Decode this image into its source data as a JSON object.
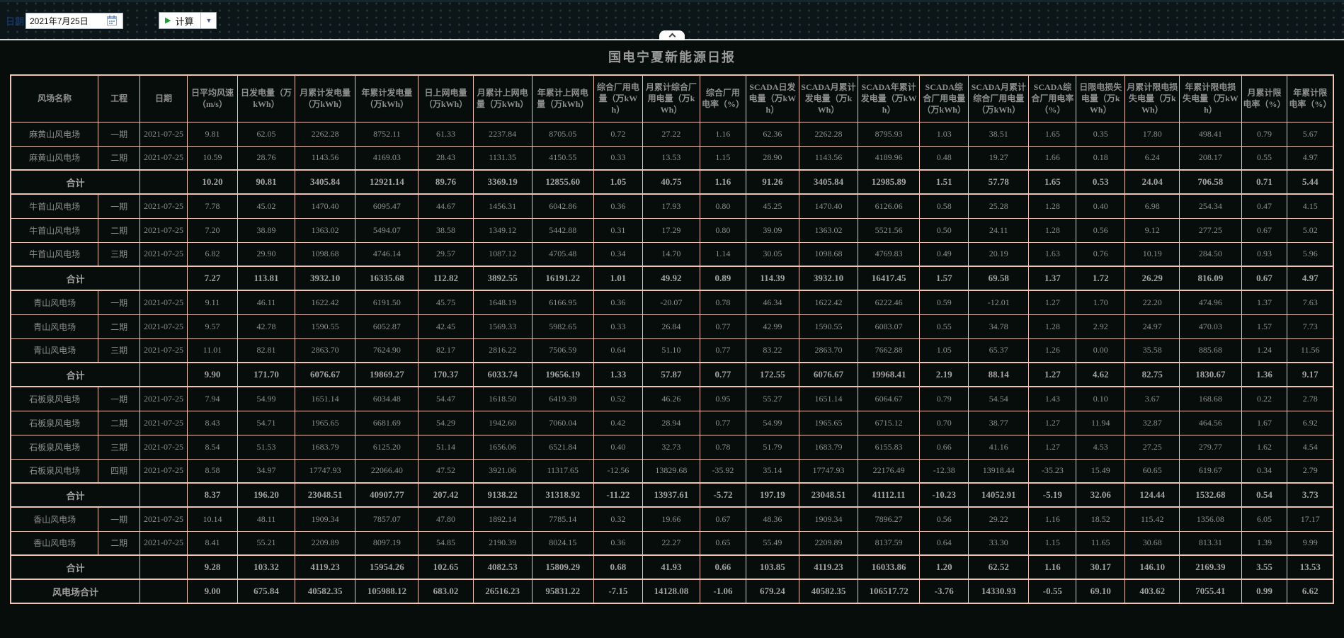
{
  "toolbar": {
    "date_label": "日期",
    "date_value": "2021年7月25日",
    "calc_button_label": "计算"
  },
  "header": {
    "title": "国电宁夏新能源日报"
  },
  "colors": {
    "table_border": "#f0c4b2",
    "cell_text": "#8f8f8f",
    "play_icon_green": "#18a02c",
    "dropdown_arrow_blue": "#3f5f9e",
    "page_background": "#060d0a"
  },
  "table": {
    "columns": [
      "风场名称",
      "工程",
      "日期",
      "日平均风速（m/s）",
      "日发电量（万kWh）",
      "月累计发电量（万kWh）",
      "年累计发电量（万kWh）",
      "日上网电量（万kWh）",
      "月累计上网电量（万kWh）",
      "年累计上网电量（万kWh）",
      "综合厂用电量（万kWh）",
      "月累计综合厂用电量（万kWh）",
      "综合厂用电率（%）",
      "SCADA日发电量（万kWh）",
      "SCADA月累计发电量（万kWh）",
      "SCADA年累计发电量（万kWh）",
      "SCADA综合厂用电量（万kWh）",
      "SCADA月累计综合厂用电量（万kWh）",
      "SCADA综合厂用电率（%）",
      "日限电损失电量（万kWh）",
      "月累计限电损失电量（万kWh）",
      "年累计限电损失电量（万kWh）",
      "月累计限电率（%）",
      "年累计限电率（%）"
    ],
    "rows": [
      {
        "type": "data",
        "name": "麻黄山风电场",
        "phase": "一期",
        "date": "2021-07-25",
        "values": [
          "9.81",
          "62.05",
          "2262.28",
          "8752.11",
          "61.33",
          "2237.84",
          "8705.05",
          "0.72",
          "27.22",
          "1.16",
          "62.36",
          "2262.28",
          "8795.93",
          "1.03",
          "38.51",
          "1.65",
          "0.35",
          "17.80",
          "498.41",
          "0.79",
          "5.67"
        ]
      },
      {
        "type": "data",
        "name": "麻黄山风电场",
        "phase": "二期",
        "date": "2021-07-25",
        "values": [
          "10.59",
          "28.76",
          "1143.56",
          "4169.03",
          "28.43",
          "1131.35",
          "4150.55",
          "0.33",
          "13.53",
          "1.15",
          "28.90",
          "1143.56",
          "4189.96",
          "0.48",
          "19.27",
          "1.66",
          "0.18",
          "6.24",
          "208.17",
          "0.55",
          "4.97"
        ]
      },
      {
        "type": "subtotal",
        "name": "合计",
        "date": "",
        "values": [
          "10.20",
          "90.81",
          "3405.84",
          "12921.14",
          "89.76",
          "3369.19",
          "12855.60",
          "1.05",
          "40.75",
          "1.16",
          "91.26",
          "3405.84",
          "12985.89",
          "1.51",
          "57.78",
          "1.65",
          "0.53",
          "24.04",
          "706.58",
          "0.71",
          "5.44"
        ]
      },
      {
        "type": "data",
        "name": "牛首山风电场",
        "phase": "一期",
        "date": "2021-07-25",
        "values": [
          "7.78",
          "45.02",
          "1470.40",
          "6095.47",
          "44.67",
          "1456.31",
          "6042.86",
          "0.36",
          "17.93",
          "0.80",
          "45.25",
          "1470.40",
          "6126.06",
          "0.58",
          "25.28",
          "1.28",
          "0.40",
          "6.98",
          "254.34",
          "0.47",
          "4.15"
        ]
      },
      {
        "type": "data",
        "name": "牛首山风电场",
        "phase": "二期",
        "date": "2021-07-25",
        "values": [
          "7.20",
          "38.89",
          "1363.02",
          "5494.07",
          "38.58",
          "1349.12",
          "5442.88",
          "0.31",
          "17.29",
          "0.80",
          "39.09",
          "1363.02",
          "5521.56",
          "0.50",
          "24.11",
          "1.28",
          "0.56",
          "9.12",
          "277.25",
          "0.67",
          "5.02"
        ]
      },
      {
        "type": "data",
        "name": "牛首山风电场",
        "phase": "三期",
        "date": "2021-07-25",
        "values": [
          "6.82",
          "29.90",
          "1098.68",
          "4746.14",
          "29.57",
          "1087.12",
          "4705.48",
          "0.34",
          "14.70",
          "1.14",
          "30.05",
          "1098.68",
          "4769.83",
          "0.49",
          "20.19",
          "1.63",
          "0.76",
          "10.19",
          "284.50",
          "0.93",
          "5.96"
        ]
      },
      {
        "type": "subtotal",
        "name": "合计",
        "date": "",
        "values": [
          "7.27",
          "113.81",
          "3932.10",
          "16335.68",
          "112.82",
          "3892.55",
          "16191.22",
          "1.01",
          "49.92",
          "0.89",
          "114.39",
          "3932.10",
          "16417.45",
          "1.57",
          "69.58",
          "1.37",
          "1.72",
          "26.29",
          "816.09",
          "0.67",
          "4.97"
        ]
      },
      {
        "type": "data",
        "name": "青山风电场",
        "phase": "一期",
        "date": "2021-07-25",
        "values": [
          "9.11",
          "46.11",
          "1622.42",
          "6191.50",
          "45.75",
          "1648.19",
          "6166.95",
          "0.36",
          "-20.07",
          "0.78",
          "46.34",
          "1622.42",
          "6222.46",
          "0.59",
          "-12.01",
          "1.27",
          "1.70",
          "22.20",
          "474.96",
          "1.37",
          "7.63"
        ]
      },
      {
        "type": "data",
        "name": "青山风电场",
        "phase": "二期",
        "date": "2021-07-25",
        "values": [
          "9.57",
          "42.78",
          "1590.55",
          "6052.87",
          "42.45",
          "1569.33",
          "5982.65",
          "0.33",
          "26.84",
          "0.77",
          "42.99",
          "1590.55",
          "6083.07",
          "0.55",
          "34.78",
          "1.28",
          "2.92",
          "24.97",
          "470.03",
          "1.57",
          "7.73"
        ]
      },
      {
        "type": "data",
        "name": "青山风电场",
        "phase": "三期",
        "date": "2021-07-25",
        "values": [
          "11.01",
          "82.81",
          "2863.70",
          "7624.90",
          "82.17",
          "2816.22",
          "7506.59",
          "0.64",
          "51.10",
          "0.77",
          "83.22",
          "2863.70",
          "7662.88",
          "1.05",
          "65.37",
          "1.26",
          "0.00",
          "35.58",
          "885.68",
          "1.24",
          "11.56"
        ]
      },
      {
        "type": "subtotal",
        "name": "合计",
        "date": "",
        "values": [
          "9.90",
          "171.70",
          "6076.67",
          "19869.27",
          "170.37",
          "6033.74",
          "19656.19",
          "1.33",
          "57.87",
          "0.77",
          "172.55",
          "6076.67",
          "19968.41",
          "2.19",
          "88.14",
          "1.27",
          "4.62",
          "82.75",
          "1830.67",
          "1.36",
          "9.17"
        ]
      },
      {
        "type": "data",
        "name": "石板泉风电场",
        "phase": "一期",
        "date": "2021-07-25",
        "values": [
          "7.94",
          "54.99",
          "1651.14",
          "6034.48",
          "54.47",
          "1618.50",
          "6419.39",
          "0.52",
          "46.26",
          "0.95",
          "55.27",
          "1651.14",
          "6064.67",
          "0.79",
          "54.54",
          "1.43",
          "0.10",
          "3.67",
          "168.68",
          "0.22",
          "2.78"
        ]
      },
      {
        "type": "data",
        "name": "石板泉风电场",
        "phase": "二期",
        "date": "2021-07-25",
        "values": [
          "8.43",
          "54.71",
          "1965.65",
          "6681.69",
          "54.29",
          "1942.60",
          "7060.04",
          "0.42",
          "28.94",
          "0.77",
          "54.99",
          "1965.65",
          "6715.12",
          "0.70",
          "38.77",
          "1.27",
          "11.94",
          "32.87",
          "464.56",
          "1.67",
          "6.92"
        ]
      },
      {
        "type": "data",
        "name": "石板泉风电场",
        "phase": "三期",
        "date": "2021-07-25",
        "values": [
          "8.54",
          "51.53",
          "1683.79",
          "6125.20",
          "51.14",
          "1656.06",
          "6521.84",
          "0.40",
          "32.73",
          "0.78",
          "51.79",
          "1683.79",
          "6155.83",
          "0.66",
          "41.16",
          "1.27",
          "4.53",
          "27.25",
          "279.77",
          "1.62",
          "4.54"
        ]
      },
      {
        "type": "data",
        "name": "石板泉风电场",
        "phase": "四期",
        "date": "2021-07-25",
        "values": [
          "8.58",
          "34.97",
          "17747.93",
          "22066.40",
          "47.52",
          "3921.06",
          "11317.65",
          "-12.56",
          "13829.68",
          "-35.92",
          "35.14",
          "17747.93",
          "22176.49",
          "-12.38",
          "13918.44",
          "-35.23",
          "15.49",
          "60.65",
          "619.67",
          "0.34",
          "2.79"
        ]
      },
      {
        "type": "subtotal",
        "name": "合计",
        "date": "",
        "values": [
          "8.37",
          "196.20",
          "23048.51",
          "40907.77",
          "207.42",
          "9138.22",
          "31318.92",
          "-11.22",
          "13937.61",
          "-5.72",
          "197.19",
          "23048.51",
          "41112.11",
          "-10.23",
          "14052.91",
          "-5.19",
          "32.06",
          "124.44",
          "1532.68",
          "0.54",
          "3.73"
        ]
      },
      {
        "type": "data",
        "name": "香山风电场",
        "phase": "一期",
        "date": "2021-07-25",
        "values": [
          "10.14",
          "48.11",
          "1909.34",
          "7857.07",
          "47.80",
          "1892.14",
          "7785.14",
          "0.32",
          "19.66",
          "0.67",
          "48.36",
          "1909.34",
          "7896.27",
          "0.56",
          "29.22",
          "1.16",
          "18.52",
          "115.42",
          "1356.08",
          "6.05",
          "17.17"
        ]
      },
      {
        "type": "data",
        "name": "香山风电场",
        "phase": "二期",
        "date": "2021-07-25",
        "values": [
          "8.41",
          "55.21",
          "2209.89",
          "8097.19",
          "54.85",
          "2190.39",
          "8024.15",
          "0.36",
          "22.27",
          "0.65",
          "55.49",
          "2209.89",
          "8137.59",
          "0.64",
          "33.30",
          "1.15",
          "11.65",
          "30.68",
          "813.31",
          "1.39",
          "9.99"
        ]
      },
      {
        "type": "subtotal",
        "name": "合计",
        "date": "",
        "values": [
          "9.28",
          "103.32",
          "4119.23",
          "15954.26",
          "102.65",
          "4082.53",
          "15809.29",
          "0.68",
          "41.93",
          "0.66",
          "103.85",
          "4119.23",
          "16033.86",
          "1.20",
          "62.52",
          "1.16",
          "30.17",
          "146.10",
          "2169.39",
          "3.55",
          "13.53"
        ]
      },
      {
        "type": "grand",
        "name": "风电场合计",
        "date": "",
        "values": [
          "9.00",
          "675.84",
          "40582.35",
          "105988.12",
          "683.02",
          "26516.23",
          "95831.22",
          "-7.15",
          "14128.08",
          "-1.06",
          "679.24",
          "40582.35",
          "106517.72",
          "-3.76",
          "14330.93",
          "-0.55",
          "69.10",
          "403.62",
          "7055.41",
          "0.99",
          "6.62"
        ]
      }
    ]
  }
}
